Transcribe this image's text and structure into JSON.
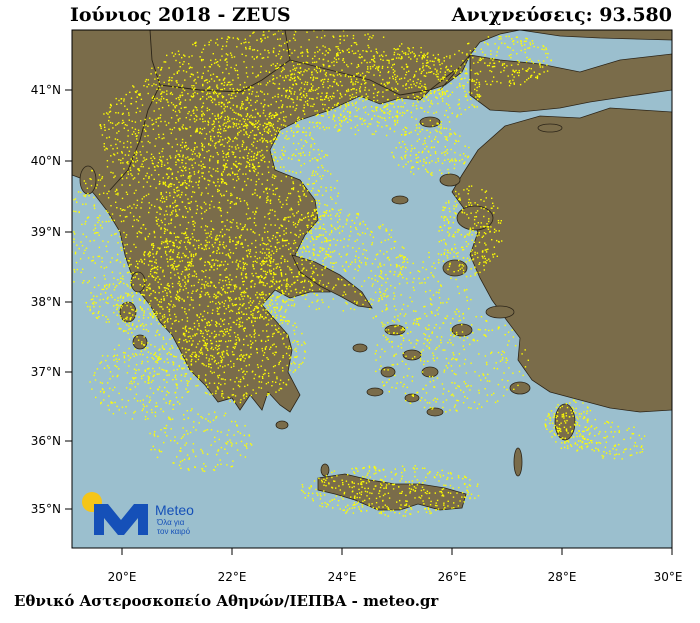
{
  "header": {
    "title": "Ιούνιος 2018 - ZEUS",
    "detections": "Ανιχνεύσεις: 93.580"
  },
  "footer": {
    "credit": "Εθνικό Αστεροσκοπείο Αθηνών/ΙΕΠΒΑ - meteo.gr"
  },
  "map": {
    "lat_ticks": [
      "41°N",
      "40°N",
      "39°N",
      "38°N",
      "37°N",
      "36°N",
      "35°N"
    ],
    "lon_ticks": [
      "20°E",
      "22°E",
      "24°E",
      "26°E",
      "28°E",
      "30°E"
    ],
    "colors": {
      "sea": "#9bbfce",
      "land": "#7a6c4a",
      "lightning": "#ffff00",
      "border": "#2b2418"
    }
  },
  "logo": {
    "brand": "Meteo",
    "tagline_line1": "Όλα για",
    "tagline_line2": "τον καιρό",
    "colors": {
      "sun": "#f5c518",
      "mark": "#1550b8"
    }
  }
}
